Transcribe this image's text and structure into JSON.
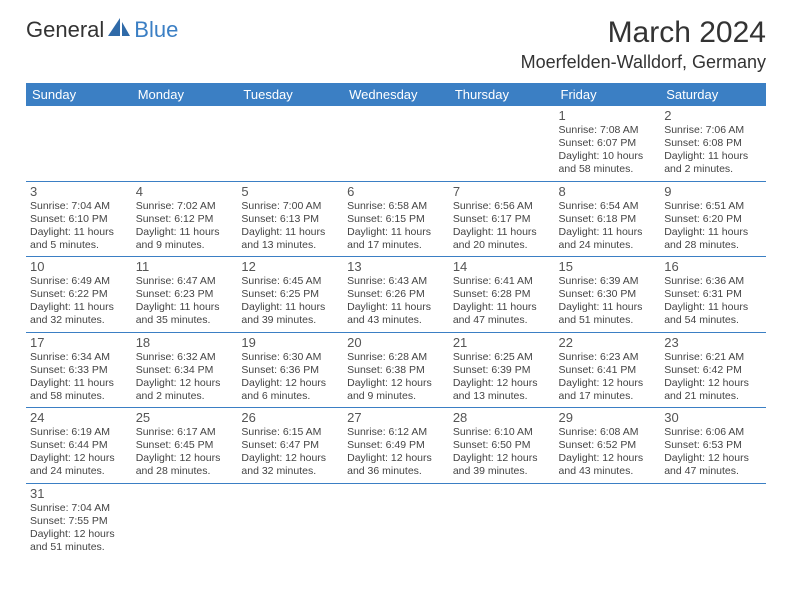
{
  "logo": {
    "text1": "General",
    "text2": "Blue"
  },
  "title": "March 2024",
  "location": "Moerfelden-Walldorf, Germany",
  "colors": {
    "header_bg": "#3b7fc4",
    "header_text": "#ffffff",
    "border": "#3b7fc4",
    "body_text": "#444444",
    "day_num": "#555555"
  },
  "weekdays": [
    "Sunday",
    "Monday",
    "Tuesday",
    "Wednesday",
    "Thursday",
    "Friday",
    "Saturday"
  ],
  "weeks": [
    [
      null,
      null,
      null,
      null,
      null,
      {
        "n": "1",
        "sr": "Sunrise: 7:08 AM",
        "ss": "Sunset: 6:07 PM",
        "dl1": "Daylight: 10 hours",
        "dl2": "and 58 minutes."
      },
      {
        "n": "2",
        "sr": "Sunrise: 7:06 AM",
        "ss": "Sunset: 6:08 PM",
        "dl1": "Daylight: 11 hours",
        "dl2": "and 2 minutes."
      }
    ],
    [
      {
        "n": "3",
        "sr": "Sunrise: 7:04 AM",
        "ss": "Sunset: 6:10 PM",
        "dl1": "Daylight: 11 hours",
        "dl2": "and 5 minutes."
      },
      {
        "n": "4",
        "sr": "Sunrise: 7:02 AM",
        "ss": "Sunset: 6:12 PM",
        "dl1": "Daylight: 11 hours",
        "dl2": "and 9 minutes."
      },
      {
        "n": "5",
        "sr": "Sunrise: 7:00 AM",
        "ss": "Sunset: 6:13 PM",
        "dl1": "Daylight: 11 hours",
        "dl2": "and 13 minutes."
      },
      {
        "n": "6",
        "sr": "Sunrise: 6:58 AM",
        "ss": "Sunset: 6:15 PM",
        "dl1": "Daylight: 11 hours",
        "dl2": "and 17 minutes."
      },
      {
        "n": "7",
        "sr": "Sunrise: 6:56 AM",
        "ss": "Sunset: 6:17 PM",
        "dl1": "Daylight: 11 hours",
        "dl2": "and 20 minutes."
      },
      {
        "n": "8",
        "sr": "Sunrise: 6:54 AM",
        "ss": "Sunset: 6:18 PM",
        "dl1": "Daylight: 11 hours",
        "dl2": "and 24 minutes."
      },
      {
        "n": "9",
        "sr": "Sunrise: 6:51 AM",
        "ss": "Sunset: 6:20 PM",
        "dl1": "Daylight: 11 hours",
        "dl2": "and 28 minutes."
      }
    ],
    [
      {
        "n": "10",
        "sr": "Sunrise: 6:49 AM",
        "ss": "Sunset: 6:22 PM",
        "dl1": "Daylight: 11 hours",
        "dl2": "and 32 minutes."
      },
      {
        "n": "11",
        "sr": "Sunrise: 6:47 AM",
        "ss": "Sunset: 6:23 PM",
        "dl1": "Daylight: 11 hours",
        "dl2": "and 35 minutes."
      },
      {
        "n": "12",
        "sr": "Sunrise: 6:45 AM",
        "ss": "Sunset: 6:25 PM",
        "dl1": "Daylight: 11 hours",
        "dl2": "and 39 minutes."
      },
      {
        "n": "13",
        "sr": "Sunrise: 6:43 AM",
        "ss": "Sunset: 6:26 PM",
        "dl1": "Daylight: 11 hours",
        "dl2": "and 43 minutes."
      },
      {
        "n": "14",
        "sr": "Sunrise: 6:41 AM",
        "ss": "Sunset: 6:28 PM",
        "dl1": "Daylight: 11 hours",
        "dl2": "and 47 minutes."
      },
      {
        "n": "15",
        "sr": "Sunrise: 6:39 AM",
        "ss": "Sunset: 6:30 PM",
        "dl1": "Daylight: 11 hours",
        "dl2": "and 51 minutes."
      },
      {
        "n": "16",
        "sr": "Sunrise: 6:36 AM",
        "ss": "Sunset: 6:31 PM",
        "dl1": "Daylight: 11 hours",
        "dl2": "and 54 minutes."
      }
    ],
    [
      {
        "n": "17",
        "sr": "Sunrise: 6:34 AM",
        "ss": "Sunset: 6:33 PM",
        "dl1": "Daylight: 11 hours",
        "dl2": "and 58 minutes."
      },
      {
        "n": "18",
        "sr": "Sunrise: 6:32 AM",
        "ss": "Sunset: 6:34 PM",
        "dl1": "Daylight: 12 hours",
        "dl2": "and 2 minutes."
      },
      {
        "n": "19",
        "sr": "Sunrise: 6:30 AM",
        "ss": "Sunset: 6:36 PM",
        "dl1": "Daylight: 12 hours",
        "dl2": "and 6 minutes."
      },
      {
        "n": "20",
        "sr": "Sunrise: 6:28 AM",
        "ss": "Sunset: 6:38 PM",
        "dl1": "Daylight: 12 hours",
        "dl2": "and 9 minutes."
      },
      {
        "n": "21",
        "sr": "Sunrise: 6:25 AM",
        "ss": "Sunset: 6:39 PM",
        "dl1": "Daylight: 12 hours",
        "dl2": "and 13 minutes."
      },
      {
        "n": "22",
        "sr": "Sunrise: 6:23 AM",
        "ss": "Sunset: 6:41 PM",
        "dl1": "Daylight: 12 hours",
        "dl2": "and 17 minutes."
      },
      {
        "n": "23",
        "sr": "Sunrise: 6:21 AM",
        "ss": "Sunset: 6:42 PM",
        "dl1": "Daylight: 12 hours",
        "dl2": "and 21 minutes."
      }
    ],
    [
      {
        "n": "24",
        "sr": "Sunrise: 6:19 AM",
        "ss": "Sunset: 6:44 PM",
        "dl1": "Daylight: 12 hours",
        "dl2": "and 24 minutes."
      },
      {
        "n": "25",
        "sr": "Sunrise: 6:17 AM",
        "ss": "Sunset: 6:45 PM",
        "dl1": "Daylight: 12 hours",
        "dl2": "and 28 minutes."
      },
      {
        "n": "26",
        "sr": "Sunrise: 6:15 AM",
        "ss": "Sunset: 6:47 PM",
        "dl1": "Daylight: 12 hours",
        "dl2": "and 32 minutes."
      },
      {
        "n": "27",
        "sr": "Sunrise: 6:12 AM",
        "ss": "Sunset: 6:49 PM",
        "dl1": "Daylight: 12 hours",
        "dl2": "and 36 minutes."
      },
      {
        "n": "28",
        "sr": "Sunrise: 6:10 AM",
        "ss": "Sunset: 6:50 PM",
        "dl1": "Daylight: 12 hours",
        "dl2": "and 39 minutes."
      },
      {
        "n": "29",
        "sr": "Sunrise: 6:08 AM",
        "ss": "Sunset: 6:52 PM",
        "dl1": "Daylight: 12 hours",
        "dl2": "and 43 minutes."
      },
      {
        "n": "30",
        "sr": "Sunrise: 6:06 AM",
        "ss": "Sunset: 6:53 PM",
        "dl1": "Daylight: 12 hours",
        "dl2": "and 47 minutes."
      }
    ],
    [
      {
        "n": "31",
        "sr": "Sunrise: 7:04 AM",
        "ss": "Sunset: 7:55 PM",
        "dl1": "Daylight: 12 hours",
        "dl2": "and 51 minutes."
      },
      null,
      null,
      null,
      null,
      null,
      null
    ]
  ]
}
